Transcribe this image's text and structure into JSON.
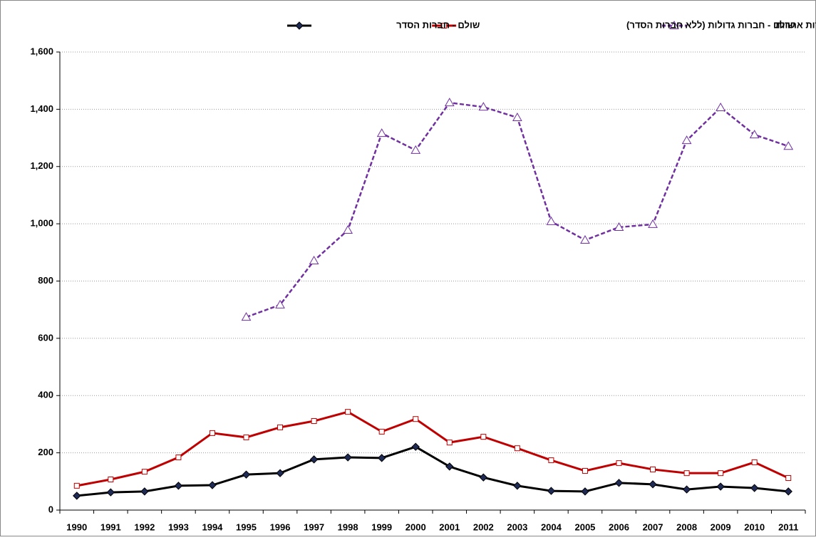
{
  "chart_data": {
    "type": "line",
    "categories": [
      "1990",
      "1991",
      "1992",
      "1993",
      "1994",
      "1995",
      "1996",
      "1997",
      "1998",
      "1999",
      "2000",
      "2001",
      "2002",
      "2003",
      "2004",
      "2005",
      "2006",
      "2007",
      "2008",
      "2009",
      "2010",
      "2011"
    ],
    "series": [
      {
        "name": "שולם - חברות הסדר",
        "color": "#000000",
        "marker": "diamond",
        "dashed": false,
        "values": [
          50,
          62,
          65,
          85,
          87,
          124,
          129,
          177,
          184,
          182,
          221,
          152,
          114,
          85,
          67,
          65,
          95,
          90,
          72,
          82,
          77,
          65
        ]
      },
      {
        "name": "שולם - חברות גדולות (ללא חברות הסדר)",
        "color": "#c00000",
        "marker": "square",
        "dashed": false,
        "values": [
          85,
          107,
          134,
          184,
          269,
          254,
          289,
          311,
          343,
          274,
          318,
          236,
          256,
          216,
          174,
          137,
          164,
          142,
          129,
          129,
          167,
          112
        ]
      },
      {
        "name": "שולם - חברות אחרות",
        "color": "#7030a0",
        "marker": "triangle",
        "dashed": true,
        "values": [
          null,
          null,
          null,
          null,
          null,
          674,
          717,
          871,
          978,
          1316,
          1257,
          1423,
          1408,
          1371,
          1008,
          943,
          988,
          998,
          1291,
          1406,
          1311,
          1271
        ]
      }
    ],
    "ylim": [
      0,
      1600
    ],
    "yticks": [
      0,
      200,
      400,
      600,
      800,
      {
        "value": 1000,
        "label": "1,000"
      },
      {
        "value": 1200,
        "label": "1,200"
      },
      {
        "value": 1400,
        "label": "1,400"
      },
      {
        "value": 1600,
        "label": "1,600"
      }
    ],
    "grid": true,
    "legend": "top"
  }
}
